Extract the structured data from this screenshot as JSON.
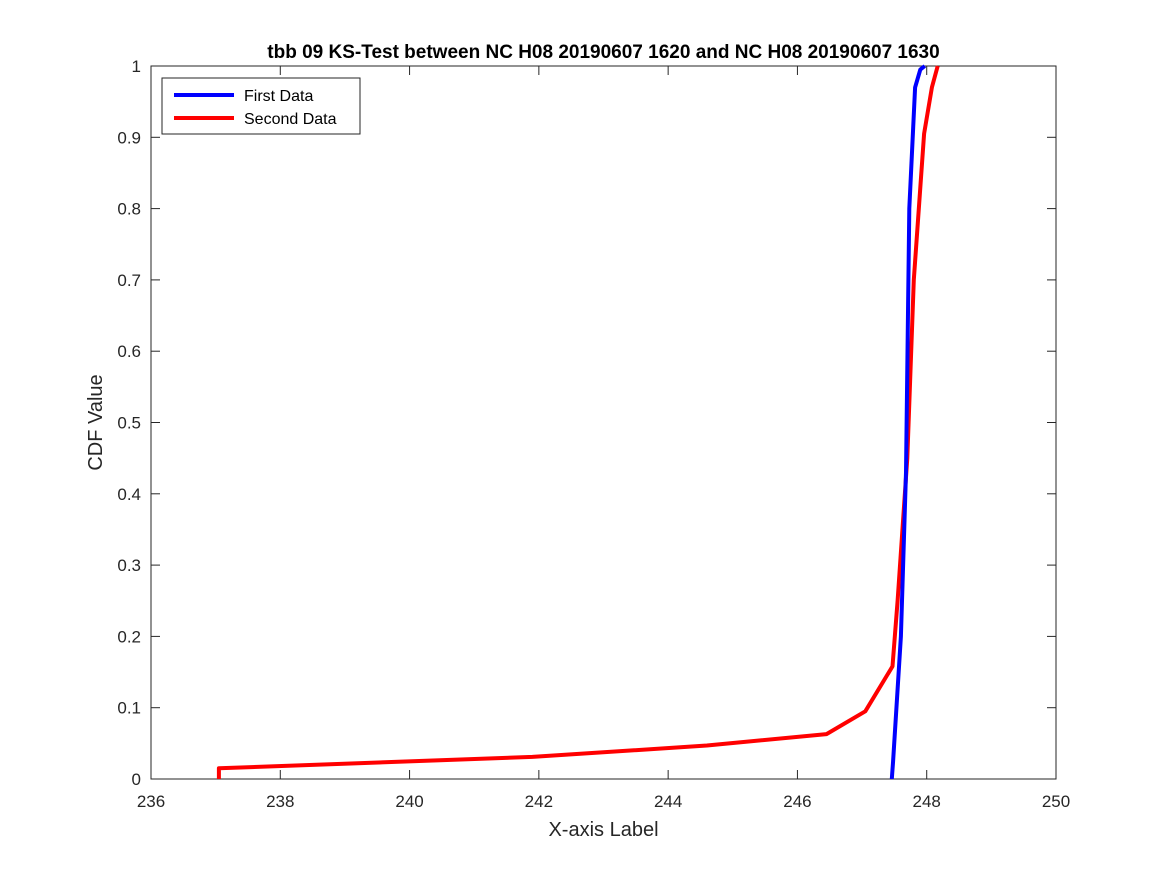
{
  "chart_data": {
    "type": "line",
    "title": "tbb 09 KS-Test between NC H08 20190607 1620 and NC H08 20190607 1630",
    "xlabel": "X-axis Label",
    "ylabel": "CDF Value",
    "xlim": [
      236,
      250
    ],
    "ylim": [
      0,
      1
    ],
    "xticks": [
      236,
      238,
      240,
      242,
      244,
      246,
      248,
      250
    ],
    "yticks": [
      0,
      0.1,
      0.2,
      0.3,
      0.4,
      0.5,
      0.6,
      0.7,
      0.8,
      0.9,
      1
    ],
    "xtick_labels": [
      "236",
      "238",
      "240",
      "242",
      "244",
      "246",
      "248",
      "250"
    ],
    "ytick_labels": [
      "0",
      "0.1",
      "0.2",
      "0.3",
      "0.4",
      "0.5",
      "0.6",
      "0.7",
      "0.8",
      "0.9",
      "1"
    ],
    "grid": false,
    "legend_position": "top-left",
    "series": [
      {
        "name": "First Data",
        "color": "#0000ff",
        "x": [
          247.46,
          247.48,
          247.6,
          247.68,
          247.73,
          247.82,
          247.9,
          247.97
        ],
        "y": [
          0.0,
          0.025,
          0.2,
          0.43,
          0.8,
          0.97,
          0.995,
          1.0
        ]
      },
      {
        "name": "Second Data",
        "color": "#ff0000",
        "x": [
          237.05,
          237.05,
          241.9,
          244.6,
          246.45,
          247.05,
          247.47,
          247.55,
          247.7,
          247.8,
          247.96,
          248.08,
          248.17
        ],
        "y": [
          0.0,
          0.015,
          0.031,
          0.047,
          0.063,
          0.095,
          0.158,
          0.25,
          0.45,
          0.7,
          0.905,
          0.97,
          1.0
        ]
      }
    ]
  }
}
